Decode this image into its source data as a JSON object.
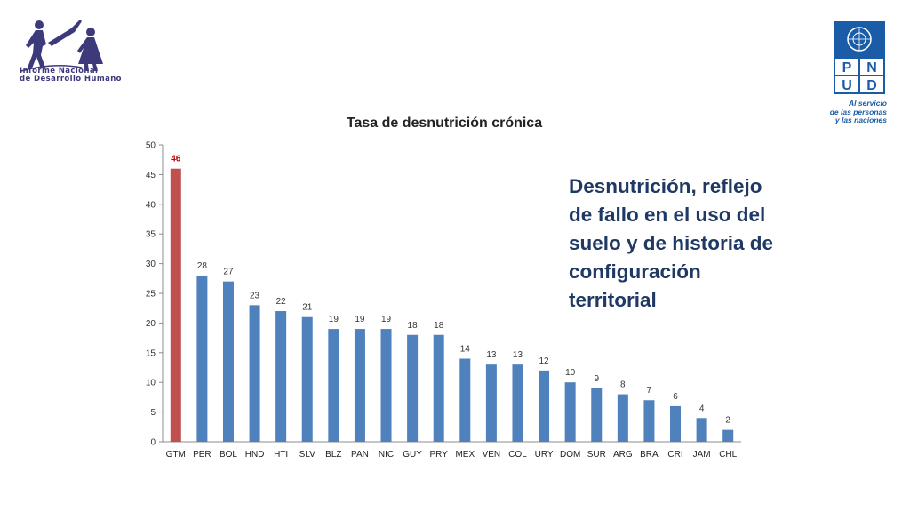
{
  "logo_left": {
    "line1": "Informe  Nacional",
    "line2": "de Desarrollo Humano"
  },
  "logo_right": {
    "letters": [
      "P",
      "N",
      "U",
      "D"
    ],
    "tagline": [
      "Al servicio",
      "de las personas",
      "y las naciones"
    ]
  },
  "side_text": "Desnutrición, reflejo de fallo en el uso del suelo y de historia de configuración territorial",
  "chart_data": {
    "type": "bar",
    "title": "Tasa de desnutrición crónica",
    "categories": [
      "GTM",
      "PER",
      "BOL",
      "HND",
      "HTI",
      "SLV",
      "BLZ",
      "PAN",
      "NIC",
      "GUY",
      "PRY",
      "MEX",
      "VEN",
      "COL",
      "URY",
      "DOM",
      "SUR",
      "ARG",
      "BRA",
      "CRI",
      "JAM",
      "CHL"
    ],
    "values": [
      46,
      28,
      27,
      23,
      22,
      21,
      19,
      19,
      19,
      18,
      18,
      14,
      13,
      13,
      12,
      10,
      9,
      8,
      7,
      6,
      4,
      2
    ],
    "data_labels": [
      "46",
      "28",
      "27",
      "23",
      "22",
      "21",
      "19",
      "19",
      "19",
      "18",
      "18",
      "14",
      "13",
      "13",
      "12",
      "10",
      "9",
      "8",
      "7",
      "6",
      "4",
      "2"
    ],
    "highlight_category": "GTM",
    "ylim": [
      0,
      50
    ],
    "yticks": [
      0,
      5,
      10,
      15,
      20,
      25,
      30,
      35,
      40,
      45,
      50
    ],
    "xlabel": "",
    "ylabel": "",
    "grid": false,
    "colors": {
      "bar": "#4f81bd",
      "highlight": "#c0504d",
      "highlight_label": "#c00000"
    }
  }
}
